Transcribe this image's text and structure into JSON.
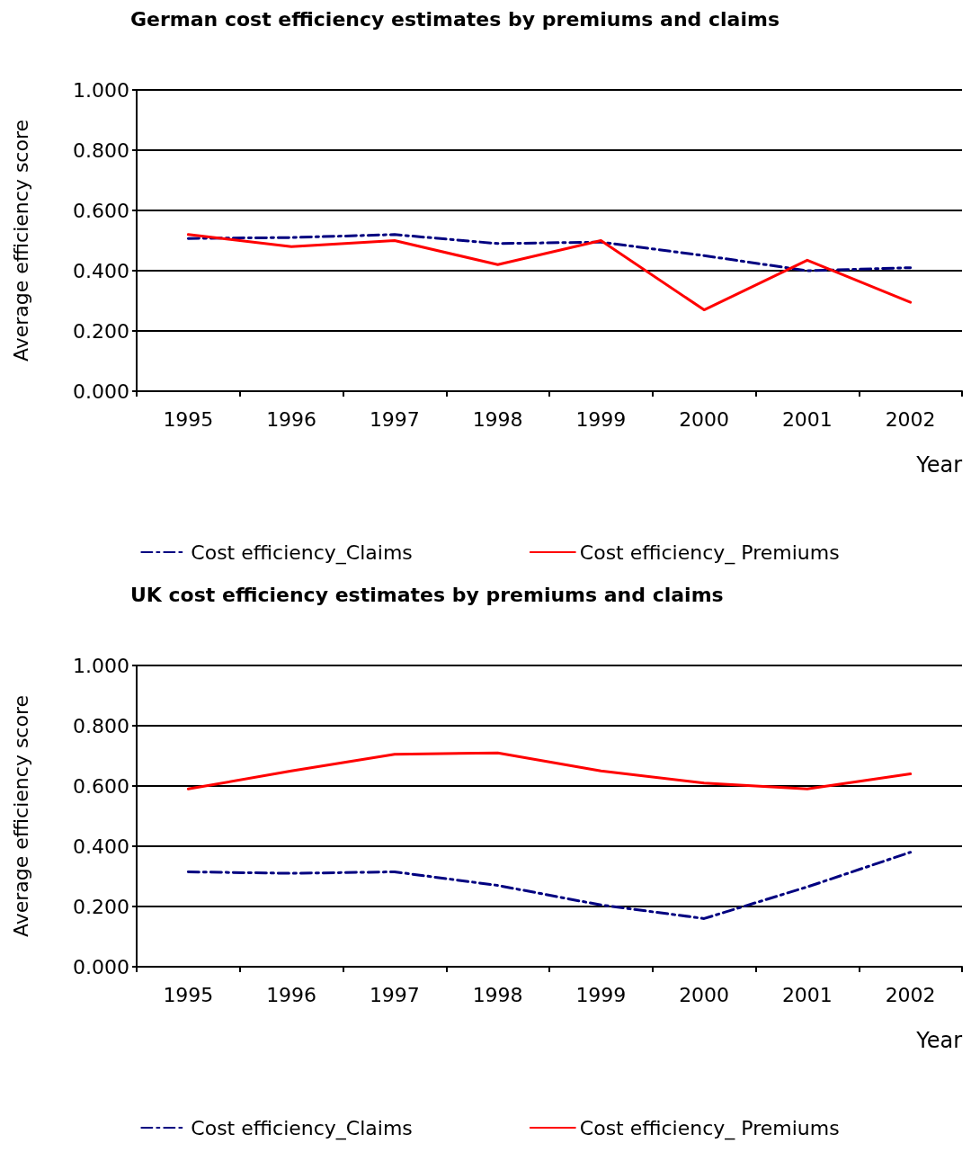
{
  "chart_data": [
    {
      "type": "line",
      "title": "German cost efficiency estimates by premiums and claims",
      "xlabel": "Year",
      "ylabel": "Average efficiency score",
      "categories": [
        "1995",
        "1996",
        "1997",
        "1998",
        "1999",
        "2000",
        "2001",
        "2002"
      ],
      "series": [
        {
          "name": "Cost efficiency_Claims",
          "color": "#000080",
          "line_style": "dashed",
          "values": [
            0.507,
            0.51,
            0.52,
            0.49,
            0.495,
            0.45,
            0.4,
            0.41
          ]
        },
        {
          "name": "Cost efficiency_ Premiums",
          "color": "#ff0000",
          "line_style": "solid",
          "values": [
            0.52,
            0.48,
            0.5,
            0.42,
            0.5,
            0.27,
            0.435,
            0.295
          ]
        }
      ],
      "ylim": [
        0,
        1
      ],
      "yticks": [
        {
          "value": 0,
          "label": "0.000"
        },
        {
          "value": 0.2,
          "label": "0.200"
        },
        {
          "value": 0.4,
          "label": "0.400"
        },
        {
          "value": 0.6,
          "label": "0.600"
        },
        {
          "value": 0.8,
          "label": "0.800"
        },
        {
          "value": 1,
          "label": "1.000"
        }
      ],
      "grid": "y",
      "legend": "bottom",
      "marker": "none"
    },
    {
      "type": "line",
      "title": "UK cost efficiency estimates by premiums and claims",
      "xlabel": "Year",
      "ylabel": "Average efficiency score",
      "categories": [
        "1995",
        "1996",
        "1997",
        "1998",
        "1999",
        "2000",
        "2001",
        "2002"
      ],
      "series": [
        {
          "name": "Cost efficiency_Claims",
          "color": "#000080",
          "line_style": "dashed",
          "values": [
            0.315,
            0.31,
            0.315,
            0.27,
            0.205,
            0.16,
            0.265,
            0.38
          ]
        },
        {
          "name": "Cost efficiency_ Premiums",
          "color": "#ff0000",
          "line_style": "solid",
          "values": [
            0.59,
            0.65,
            0.705,
            0.71,
            0.65,
            0.61,
            0.59,
            0.64
          ]
        }
      ],
      "ylim": [
        0,
        1
      ],
      "yticks": [
        {
          "value": 0,
          "label": "0.000"
        },
        {
          "value": 0.2,
          "label": "0.200"
        },
        {
          "value": 0.4,
          "label": "0.400"
        },
        {
          "value": 0.6,
          "label": "0.600"
        },
        {
          "value": 0.8,
          "label": "0.800"
        },
        {
          "value": 1,
          "label": "1.000"
        }
      ],
      "grid": "y",
      "legend": "bottom",
      "marker": "none"
    }
  ]
}
